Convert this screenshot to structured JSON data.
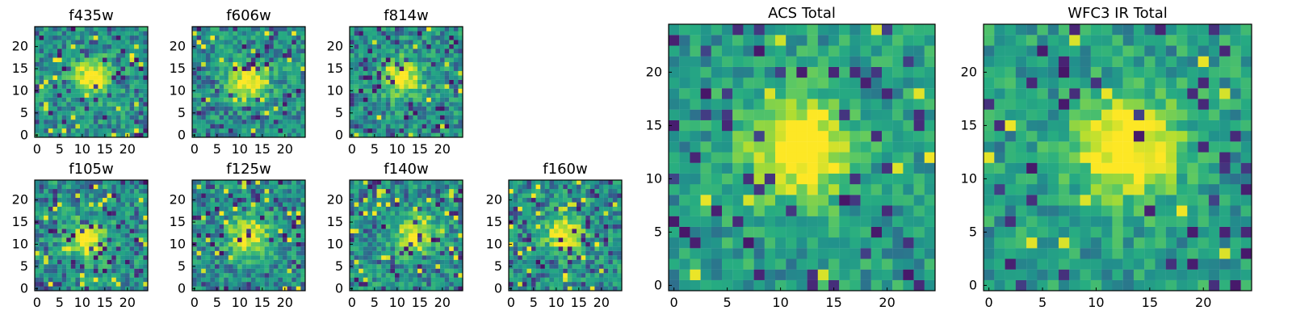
{
  "chart_data": [
    {
      "id": "f435w",
      "type": "heatmap",
      "title": "f435w",
      "grid_size": [
        25,
        25
      ],
      "colormap": "viridis",
      "x_ticks": [
        0,
        5,
        10,
        15,
        20
      ],
      "y_ticks": [
        0,
        5,
        10,
        15,
        20
      ],
      "peak": [
        12,
        13
      ]
    },
    {
      "id": "f606w",
      "type": "heatmap",
      "title": "f606w",
      "grid_size": [
        25,
        25
      ],
      "colormap": "viridis",
      "x_ticks": [
        0,
        5,
        10,
        15,
        20
      ],
      "y_ticks": [
        0,
        5,
        10,
        15,
        20
      ],
      "peak": [
        12,
        12
      ]
    },
    {
      "id": "f814w",
      "type": "heatmap",
      "title": "f814w",
      "grid_size": [
        25,
        25
      ],
      "colormap": "viridis",
      "x_ticks": [
        0,
        5,
        10,
        15,
        20
      ],
      "y_ticks": [
        0,
        5,
        10,
        15,
        20
      ],
      "peak": [
        11,
        13
      ]
    },
    {
      "id": "f105w",
      "type": "heatmap",
      "title": "f105w",
      "grid_size": [
        25,
        25
      ],
      "colormap": "viridis",
      "x_ticks": [
        0,
        5,
        10,
        15,
        20
      ],
      "y_ticks": [
        0,
        5,
        10,
        15,
        20
      ],
      "peak": [
        11,
        11
      ]
    },
    {
      "id": "f125w",
      "type": "heatmap",
      "title": "f125w",
      "grid_size": [
        25,
        25
      ],
      "colormap": "viridis",
      "x_ticks": [
        0,
        5,
        10,
        15,
        20
      ],
      "y_ticks": [
        0,
        5,
        10,
        15,
        20
      ],
      "peak": [
        12,
        12
      ]
    },
    {
      "id": "f140w",
      "type": "heatmap",
      "title": "f140w",
      "grid_size": [
        25,
        25
      ],
      "colormap": "viridis",
      "x_ticks": [
        0,
        5,
        10,
        15,
        20
      ],
      "y_ticks": [
        0,
        5,
        10,
        15,
        20
      ],
      "peak": [
        14,
        12
      ]
    },
    {
      "id": "f160w",
      "type": "heatmap",
      "title": "f160w",
      "grid_size": [
        25,
        25
      ],
      "colormap": "viridis",
      "x_ticks": [
        0,
        5,
        10,
        15,
        20
      ],
      "y_ticks": [
        0,
        5,
        10,
        15,
        20
      ],
      "peak": [
        12,
        12
      ]
    },
    {
      "id": "acs-total",
      "type": "heatmap",
      "title": "ACS Total",
      "grid_size": [
        25,
        25
      ],
      "colormap": "viridis",
      "x_ticks": [
        0,
        5,
        10,
        15,
        20
      ],
      "y_ticks": [
        0,
        5,
        10,
        15,
        20
      ],
      "peak": [
        12,
        13
      ]
    },
    {
      "id": "wfc3-ir-total",
      "type": "heatmap",
      "title": "WFC3 IR Total",
      "grid_size": [
        25,
        25
      ],
      "colormap": "viridis",
      "x_ticks": [
        0,
        5,
        10,
        15,
        20
      ],
      "y_ticks": [
        0,
        5,
        10,
        15,
        20
      ],
      "peak": [
        13,
        13
      ]
    }
  ]
}
